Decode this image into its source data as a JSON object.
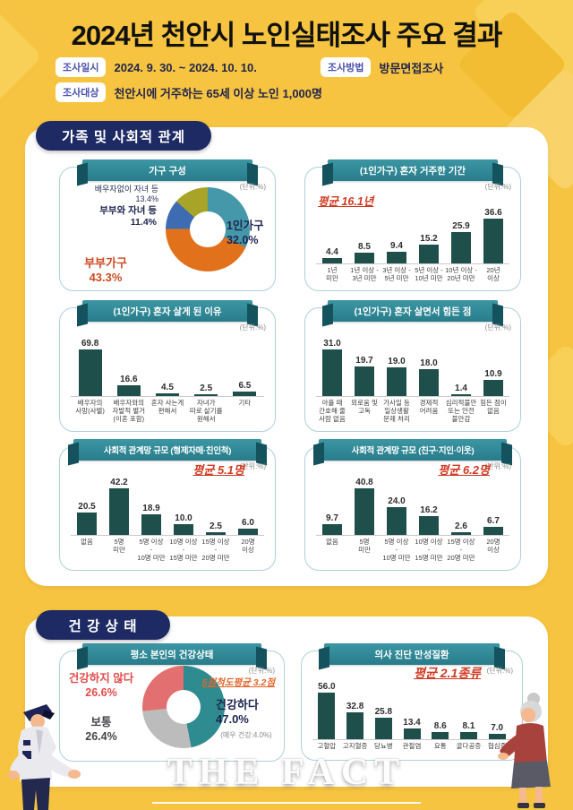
{
  "header": {
    "title": "2024년 천안시 노인실태조사 주요 결과",
    "info": [
      {
        "label": "조사일시",
        "value": "2024. 9. 30. ~ 2024. 10. 10."
      },
      {
        "label": "조사방법",
        "value": "방문면접조사"
      },
      {
        "label": "조사대상",
        "value": "천안시에 거주하는 65세 이상 노인 1,000명"
      }
    ]
  },
  "sections": {
    "family": "가족 및 사회적 관계",
    "health": "건 강 상 태"
  },
  "watermark": "THE FACT",
  "colors": {
    "background": "#f6c440",
    "section_pill": "#1d2a63",
    "ribbon": "#2e8796",
    "bar": "#1f4f4b",
    "average_red": "#cf3a22",
    "navy_text": "#20264f"
  },
  "chart_data": [
    {
      "type": "pie",
      "title": "가구 구성",
      "unit": "(단위:%)",
      "donut": true,
      "labels": [
        "1인가구",
        "부부가구",
        "부부와 자녀 등",
        "배우자없이 자녀 등"
      ],
      "values": [
        32.0,
        43.3,
        11.4,
        13.4
      ],
      "colors": [
        "#4498a9",
        "#e2711c",
        "#3d6cb3",
        "#a8a428"
      ]
    },
    {
      "type": "bar",
      "title": "(1인가구) 혼자 거주한 기간",
      "unit": "(단위:%)",
      "average": "평균 16.1년",
      "categories": [
        "1년\n미만",
        "1년 이상 -\n3년 미만",
        "3년 이상 -\n5년 미만",
        "5년 이상 -\n10년 미만",
        "10년 이상 -\n20년 미만",
        "20년\n이상"
      ],
      "values": [
        4.4,
        8.5,
        9.4,
        15.2,
        25.9,
        36.6
      ]
    },
    {
      "type": "bar",
      "title": "(1인가구) 혼자 살게 된 이유",
      "unit": "(단위:%)",
      "categories": [
        "배우자의\n사망(사별)",
        "배우자와의\n자발적 별거\n(이혼 포함)",
        "혼자 사는게\n편해서",
        "자녀가\n따로 살기를\n원해서",
        "기타"
      ],
      "values": [
        69.8,
        16.6,
        4.5,
        2.5,
        6.5
      ]
    },
    {
      "type": "bar",
      "title": "(1인가구) 혼자 살면서 힘든 점",
      "unit": "(단위:%)",
      "categories": [
        "아플 때\n간호해 줄\n사람 없음",
        "외로움 및\n고독",
        "가사일 등\n일상생활\n문제 처리",
        "경제적\n어려움",
        "심리적불안\n또는 안전\n불안감",
        "힘든 점이\n없음"
      ],
      "values": [
        31.0,
        19.7,
        19.0,
        18.0,
        1.4,
        10.9
      ]
    },
    {
      "type": "bar",
      "title": "사회적 관계망 규모 (형제자매·친인척)",
      "unit": "(단위:%)",
      "average": "평균 5.1명",
      "categories": [
        "없음",
        "5명\n미만",
        "5명 이상\n-\n10명 미만",
        "10명 이상\n-\n15명 미만",
        "15명 이상\n-\n20명 미만",
        "20명\n이상"
      ],
      "values": [
        20.5,
        42.2,
        18.9,
        10.0,
        2.5,
        6.0
      ]
    },
    {
      "type": "bar",
      "title": "사회적 관계망 규모 (친구·지인·이웃)",
      "unit": "(단위:%)",
      "average": "평균 6.2명",
      "categories": [
        "없음",
        "5명\n미만",
        "5명 이상\n-\n10명 미만",
        "10명 이상\n-\n15명 미만",
        "15명 이상\n-\n20명 미만",
        "20명\n이상"
      ],
      "values": [
        9.7,
        40.8,
        24.0,
        16.2,
        2.6,
        6.7
      ]
    },
    {
      "type": "pie",
      "title": "평소 본인의 건강상태",
      "unit": "(단위:%)",
      "donut": true,
      "average": "5점척도평균 3.2점",
      "note": "(매우 건강:4.0%)",
      "labels": [
        "건강하다",
        "보통",
        "건강하지 않다"
      ],
      "values": [
        47.0,
        26.4,
        26.6
      ],
      "colors": [
        "#2e8b8f",
        "#bcbcbc",
        "#e37070"
      ]
    },
    {
      "type": "bar",
      "title": "의사 진단 만성질환",
      "unit": "(단위:%)",
      "average": "평균 2.1종류",
      "categories": [
        "고혈압",
        "고지혈증",
        "당뇨병",
        "관절염",
        "요통",
        "골다공증",
        "협심증"
      ],
      "values": [
        56.0,
        32.8,
        25.8,
        13.4,
        8.6,
        8.1,
        7.0
      ]
    }
  ]
}
